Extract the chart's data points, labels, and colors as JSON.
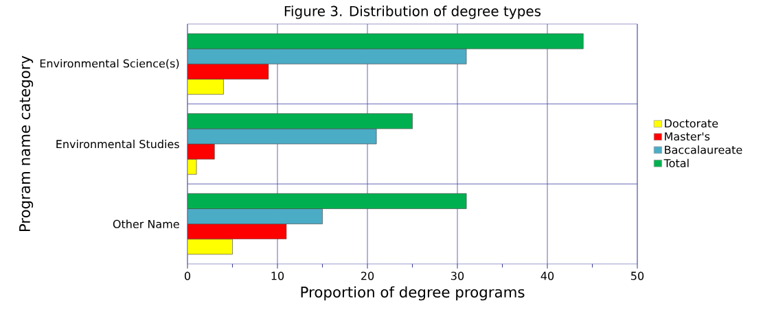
{
  "chart_data": {
    "type": "bar",
    "orientation": "horizontal",
    "title": "Figure 3. Distribution of degree types",
    "xlabel": "Proportion of degree programs",
    "ylabel": "Program name category",
    "categories": [
      "Environmental Science(s)",
      "Environmental Studies",
      "Other Name"
    ],
    "series": [
      {
        "name": "Doctorate",
        "color": "#ffff00",
        "values": [
          4,
          1,
          5
        ]
      },
      {
        "name": "Master's",
        "color": "#ff0000",
        "values": [
          9,
          3,
          11
        ]
      },
      {
        "name": "Baccalaureate",
        "color": "#4bacc6",
        "values": [
          31,
          21,
          15
        ]
      },
      {
        "name": "Total",
        "color": "#00b050",
        "values": [
          44,
          25,
          31
        ]
      }
    ],
    "xlim": [
      0,
      50
    ],
    "xticks": [
      0,
      {
        "value": 5,
        "label": null
      },
      10,
      {
        "value": 15,
        "label": null
      },
      20,
      {
        "value": 25,
        "label": null
      },
      30,
      {
        "value": 35,
        "label": null
      },
      40,
      {
        "value": 45,
        "label": null
      },
      50
    ],
    "grid": true,
    "legend": "right"
  }
}
